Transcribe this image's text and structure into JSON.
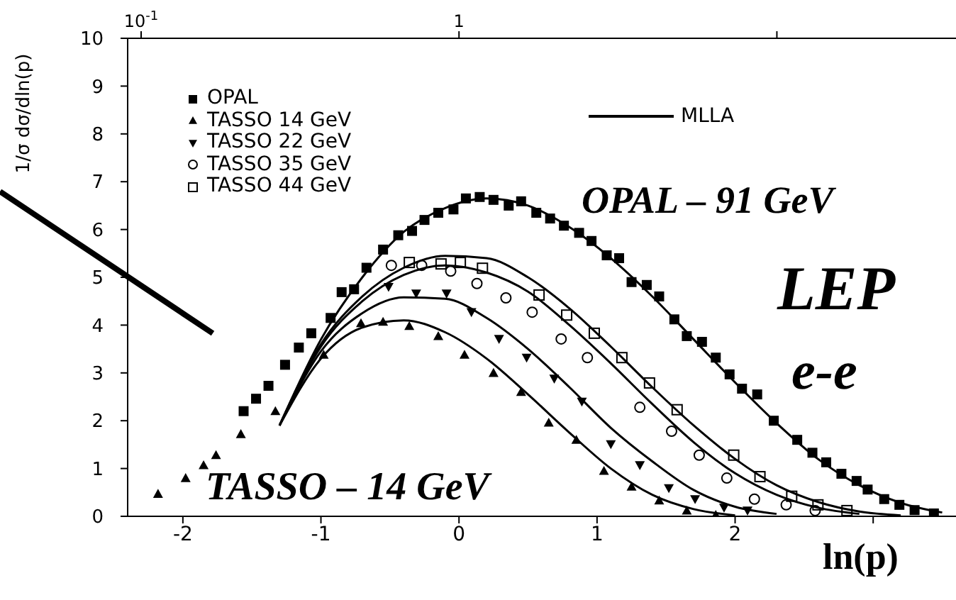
{
  "chart_data": {
    "type": "scatter",
    "ylabel": "1/σ dσ/dln(p)",
    "xlabel": "ln(p)",
    "xlim": [
      -2.4,
      3.6
    ],
    "xticks": [
      -2,
      -1,
      0,
      1,
      2,
      {
        "value": 3,
        "label": null
      }
    ],
    "x2lim": [
      0.0907,
      36.6
    ],
    "x2ticks": [
      {
        "value": 0.1,
        "label": "10$^{-1}$"
      },
      1,
      {
        "value": 10,
        "label": null
      }
    ],
    "log": "x2",
    "ylim": [
      0,
      10
    ],
    "yticks": [
      0,
      1,
      2,
      3,
      4,
      5,
      6,
      7,
      8,
      9,
      10
    ],
    "grid": false,
    "legend": "top left",
    "annotations": [
      "OPAL – 91 GeV",
      "LEP",
      "e-e",
      "TASSO – 14 GeV"
    ],
    "series": [
      {
        "name": "OPAL",
        "marker": "square",
        "color": "#000000",
        "x": [
          -1.56,
          -1.47,
          -1.38,
          -1.26,
          -1.16,
          -1.07,
          -0.93,
          -0.85,
          -0.76,
          -0.67,
          -0.55,
          -0.44,
          -0.34,
          -0.25,
          -0.15,
          -0.04,
          0.05,
          0.15,
          0.25,
          0.36,
          0.45,
          0.56,
          0.66,
          0.76,
          0.87,
          0.96,
          1.07,
          1.16,
          1.25,
          1.36,
          1.45,
          1.56,
          1.65,
          1.76,
          1.86,
          1.96,
          2.05,
          2.16,
          2.28,
          2.45,
          2.56,
          2.66,
          2.77,
          2.88,
          2.96,
          3.08,
          3.19,
          3.3,
          3.44
        ],
        "values": [
          2.2,
          2.46,
          2.73,
          3.17,
          3.53,
          3.83,
          4.15,
          4.69,
          4.75,
          5.2,
          5.58,
          5.88,
          5.97,
          6.2,
          6.35,
          6.42,
          6.65,
          6.68,
          6.62,
          6.5,
          6.59,
          6.35,
          6.23,
          6.08,
          5.93,
          5.76,
          5.46,
          5.4,
          4.9,
          4.84,
          4.6,
          4.12,
          3.77,
          3.65,
          3.32,
          2.97,
          2.67,
          2.55,
          2.0,
          1.6,
          1.33,
          1.13,
          0.89,
          0.74,
          0.56,
          0.36,
          0.24,
          0.13,
          0.06
        ]
      },
      {
        "name": "TASSO 14 GeV",
        "marker": "triangle",
        "color": "#000000",
        "x": [
          -2.18,
          -1.98,
          -1.85,
          -1.76,
          -1.58,
          -1.33,
          -0.98,
          -0.71,
          -0.55,
          -0.36,
          -0.15,
          0.04,
          0.25,
          0.45,
          0.65,
          0.85,
          1.05,
          1.25,
          1.45,
          1.65,
          1.86
        ],
        "values": [
          0.47,
          0.8,
          1.07,
          1.28,
          1.72,
          2.2,
          3.38,
          4.04,
          4.07,
          3.98,
          3.77,
          3.38,
          3.0,
          2.6,
          1.96,
          1.6,
          0.95,
          0.62,
          0.33,
          0.12,
          0.03
        ]
      },
      {
        "name": "TASSO 22 GeV",
        "marker": "triangle-down",
        "color": "#000000",
        "x": [
          -0.51,
          -0.31,
          -0.09,
          0.09,
          0.29,
          0.49,
          0.69,
          0.89,
          1.1,
          1.31,
          1.52,
          1.71,
          1.92,
          2.09
        ],
        "values": [
          4.8,
          4.66,
          4.66,
          4.27,
          3.71,
          3.32,
          2.88,
          2.4,
          1.51,
          1.07,
          0.59,
          0.36,
          0.18,
          0.12
        ]
      },
      {
        "name": "TASSO 35 GeV",
        "marker": "circle-open",
        "color": "#000000",
        "x": [
          -0.49,
          -0.27,
          -0.06,
          0.13,
          0.34,
          0.53,
          0.74,
          0.93,
          1.31,
          1.54,
          1.74,
          1.94,
          2.14,
          2.37,
          2.58
        ],
        "values": [
          5.25,
          5.25,
          5.13,
          4.87,
          4.57,
          4.27,
          3.71,
          3.32,
          2.28,
          1.78,
          1.28,
          0.8,
          0.36,
          0.24,
          0.12
        ]
      },
      {
        "name": "TASSO 44 GeV",
        "marker": "square-open",
        "color": "#000000",
        "x": [
          -0.36,
          -0.13,
          0.01,
          0.17,
          0.58,
          0.78,
          0.98,
          1.18,
          1.38,
          1.58,
          1.99,
          2.18,
          2.41,
          2.6,
          2.81
        ],
        "values": [
          5.31,
          5.28,
          5.31,
          5.19,
          4.63,
          4.21,
          3.83,
          3.32,
          2.79,
          2.23,
          1.28,
          0.83,
          0.42,
          0.24,
          0.12
        ]
      },
      {
        "name": "MLLA",
        "type": "line",
        "marker": "none",
        "line_style": "solid",
        "color": "#000000",
        "x": [
          -1.3,
          -1.0,
          -0.7,
          -0.4,
          -0.1,
          0.2,
          0.5,
          0.8,
          1.1,
          1.4,
          1.7,
          2.0,
          2.3,
          2.6,
          2.9,
          3.2,
          3.5
        ],
        "values": [
          1.9,
          3.7,
          5.0,
          5.95,
          6.45,
          6.65,
          6.5,
          6.05,
          5.4,
          4.6,
          3.7,
          2.8,
          1.95,
          1.2,
          0.65,
          0.28,
          0.08
        ]
      },
      {
        "type": "line",
        "marker": "none",
        "line_style": "solid",
        "color": "#000000",
        "x": [
          -1.3,
          -1.0,
          -0.7,
          -0.4,
          -0.1,
          0.2,
          0.5,
          0.8,
          1.1,
          1.4,
          1.7,
          2.0,
          2.3,
          2.6,
          2.9,
          3.2
        ],
        "values": [
          1.9,
          3.6,
          4.6,
          5.2,
          5.45,
          5.4,
          5.0,
          4.35,
          3.55,
          2.7,
          1.9,
          1.2,
          0.65,
          0.3,
          0.1,
          0.02
        ]
      },
      {
        "type": "line",
        "marker": "none",
        "line_style": "solid",
        "color": "#000000",
        "x": [
          -1.3,
          -1.0,
          -0.7,
          -0.4,
          -0.1,
          0.2,
          0.5,
          0.8,
          1.1,
          1.4,
          1.7,
          2.0,
          2.3,
          2.6,
          2.9
        ],
        "values": [
          1.9,
          3.55,
          4.5,
          5.05,
          5.25,
          5.1,
          4.7,
          4.0,
          3.2,
          2.35,
          1.55,
          0.9,
          0.45,
          0.18,
          0.05
        ]
      },
      {
        "type": "line",
        "marker": "none",
        "line_style": "solid",
        "color": "#000000",
        "x": [
          -1.3,
          -1.0,
          -0.7,
          -0.4,
          -0.1,
          0.2,
          0.5,
          0.8,
          1.1,
          1.4,
          1.7,
          2.0,
          2.3
        ],
        "values": [
          1.9,
          3.45,
          4.25,
          4.58,
          4.55,
          4.15,
          3.5,
          2.7,
          1.85,
          1.15,
          0.55,
          0.2,
          0.05
        ]
      },
      {
        "type": "line",
        "marker": "none",
        "line_style": "solid",
        "color": "#000000",
        "x": [
          -1.3,
          -1.0,
          -0.7,
          -0.4,
          -0.1,
          0.2,
          0.5,
          0.8,
          1.1,
          1.4,
          1.7,
          2.0
        ],
        "values": [
          1.9,
          3.3,
          3.95,
          4.1,
          3.85,
          3.3,
          2.55,
          1.75,
          1.0,
          0.45,
          0.15,
          0.02
        ]
      }
    ]
  }
}
